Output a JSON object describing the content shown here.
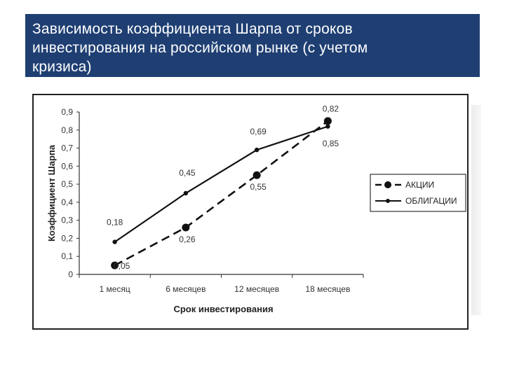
{
  "slide": {
    "title_lines": [
      "Зависимость коэффициента Шарпа от сроков",
      "инвестирования на российском рынке (с учетом",
      "кризиса)"
    ],
    "title_bg": "#1f3f73"
  },
  "chart_data": {
    "type": "line",
    "categories": [
      "1 месяц",
      "6 месяцев",
      "12 месяцев",
      "18 месяцев"
    ],
    "series": [
      {
        "name": "АКЦИИ",
        "style": "dashed-large-markers",
        "values": [
          0.05,
          0.26,
          0.55,
          0.85
        ],
        "labels": [
          "0,05",
          "0,26",
          "0,55",
          "0,85"
        ]
      },
      {
        "name": "ОБЛИГАЦИИ",
        "style": "solid-small-markers",
        "values": [
          0.18,
          0.45,
          0.69,
          0.82
        ],
        "labels": [
          "0,18",
          "0,45",
          "0,69",
          "0,82"
        ]
      }
    ],
    "xlabel": "Срок инвестирования",
    "ylabel": "Коэффициент Шарпа",
    "ylim": [
      0,
      0.9
    ],
    "yticks": [
      "0",
      "0,1",
      "0,2",
      "0,3",
      "0,4",
      "0,5",
      "0,6",
      "0,7",
      "0,8",
      "0,9"
    ],
    "grid": false,
    "legend_position": "right"
  }
}
